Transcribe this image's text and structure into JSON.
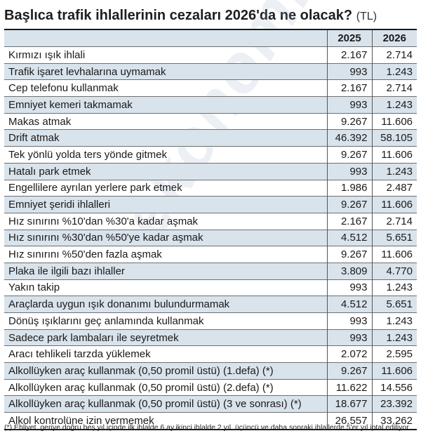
{
  "title": {
    "text": "Başlıca trafik ihlallerinin cezaları 2026'da ne olacak?",
    "unit": "(TL)"
  },
  "columns": {
    "y1": "2025",
    "y2": "2026"
  },
  "rows": [
    {
      "name": "Kırmızı ışık ihlali",
      "y1": "2.167",
      "y2": "2.714"
    },
    {
      "name": "Trafik işaret levhalarına uymamak",
      "y1": "993",
      "y2": "1.243"
    },
    {
      "name": "Cep telefonu kullanmak",
      "y1": "2.167",
      "y2": "2.714"
    },
    {
      "name": "Emniyet kemeri takmamak",
      "y1": "993",
      "y2": "1.243"
    },
    {
      "name": "Makas atmak",
      "y1": "9.267",
      "y2": "11.606"
    },
    {
      "name": "Drift atmak",
      "y1": "46.392",
      "y2": "58.105"
    },
    {
      "name": "Tek yönlü yolda ters yönde gitmek",
      "y1": "9.267",
      "y2": "11.606"
    },
    {
      "name": "Hatalı park etmek",
      "y1": "993",
      "y2": "1.243"
    },
    {
      "name": "Engellilere ayrılan yerlere park etmek",
      "y1": "1.986",
      "y2": "2.487"
    },
    {
      "name": "Emniyet şeridi ihlalleri",
      "y1": "9.267",
      "y2": "11.606"
    },
    {
      "name": "Hız sınırını %10'dan %30'a kadar aşmak",
      "y1": "2.167",
      "y2": "2.714"
    },
    {
      "name": "Hız sınırını %30'dan %50'ye kadar aşmak",
      "y1": "4.512",
      "y2": "5.651"
    },
    {
      "name": "Hız sınırını %50'den fazla aşmak",
      "y1": "9.267",
      "y2": "11.606"
    },
    {
      "name": "Plaka ile ilgili bazı ihlaller",
      "y1": "3.809",
      "y2": "4.770"
    },
    {
      "name": "Yakın takip",
      "y1": "993",
      "y2": "1.243"
    },
    {
      "name": "Araçlarda uygun ışık donanımı bulundurmamak",
      "y1": "4.512",
      "y2": "5.651"
    },
    {
      "name": "Dönüş ışıklarını geç anlamında kullanmak",
      "y1": "993",
      "y2": "1.243"
    },
    {
      "name": "Sadece park lambaları ile seyretmek",
      "y1": "993",
      "y2": "1.243"
    },
    {
      "name": "Aracı tehlikeli tarzda yüklemek",
      "y1": "2.072",
      "y2": "2.595"
    },
    {
      "name": "Alkollüyken araç kullanmak (0,50 promil üstü) (1.defa) (*)",
      "y1": "9.267",
      "y2": "11.606"
    },
    {
      "name": "Alkollüyken araç kullanmak (0,50 promil üstü) (2.defa) (*)",
      "y1": "11.622",
      "y2": "14.556"
    },
    {
      "name": "Alkollüyken araç kullanmak (0,50 promil üstü) (3 ve sonrası) (*)",
      "y1": "18.677",
      "y2": "23.392"
    },
    {
      "name": "Alkol kontrolüne izin vermemek",
      "y1": "26.557",
      "y2": "33.262"
    }
  ],
  "watermark": "ekonomi",
  "footnote": "(*) Ehliyet, geriye doğru beş yıl içinde ilk ihlalde 6 ay,ikinci ihlalde 2 yıl, üçüncü ve daha sonraki ihlallerde 5'er yıl iptal ediliyor.",
  "colors": {
    "shade": "#d9e3ec",
    "text": "#1a1a1a"
  }
}
